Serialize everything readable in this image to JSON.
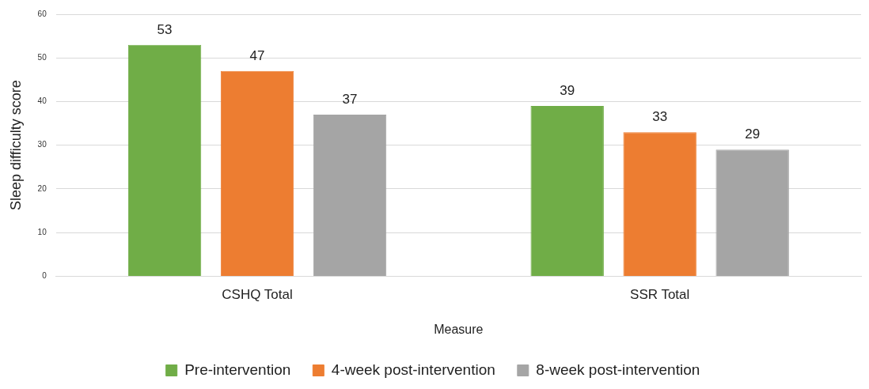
{
  "chart_data": {
    "type": "bar",
    "xlabel": "Measure",
    "ylabel": "Sleep difficulty score",
    "categories": [
      "CSHQ Total",
      "SSR Total"
    ],
    "series": [
      {
        "name": "Pre-intervention",
        "color": "#70ad47",
        "values": [
          53,
          39
        ]
      },
      {
        "name": "4-week post-intervention",
        "color": "#ed7d31",
        "values": [
          47,
          33
        ]
      },
      {
        "name": "8-week post-intervention",
        "color": "#a5a5a5",
        "values": [
          37,
          29
        ]
      }
    ],
    "ylim": [
      0,
      60
    ],
    "yticks": [
      0,
      10,
      20,
      30,
      40,
      50,
      60
    ],
    "grid": "y",
    "legend": "bottom",
    "data_labels": true
  }
}
